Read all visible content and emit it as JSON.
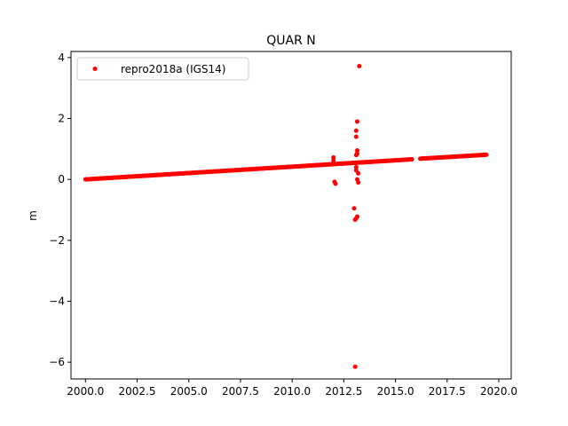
{
  "chart_data": {
    "type": "scatter",
    "title": "QUAR N",
    "xlabel": "",
    "ylabel": "m",
    "xlim": [
      1999.3,
      2020.6
    ],
    "ylim": [
      -6.55,
      4.2
    ],
    "xticks": [
      2000.0,
      2002.5,
      2005.0,
      2007.5,
      2010.0,
      2012.5,
      2015.0,
      2017.5,
      2020.0
    ],
    "xtick_labels": [
      "2000.0",
      "2002.5",
      "2005.0",
      "2007.5",
      "2010.0",
      "2012.5",
      "2015.0",
      "2017.5",
      "2020.0"
    ],
    "yticks": [
      -6,
      -4,
      -2,
      0,
      2,
      4
    ],
    "ytick_labels": [
      "−6",
      "−4",
      "−2",
      "0",
      "2",
      "4"
    ],
    "grid": false,
    "legend_position": "top-left",
    "series": [
      {
        "name": "repro2018a (IGS14)",
        "color": "#ff0000",
        "marker": "dot",
        "segments": [
          {
            "x_start": 2000.0,
            "x_end": 2015.8,
            "y_start": 0.0,
            "y_end": 0.66
          },
          {
            "x_start": 2016.2,
            "x_end": 2019.4,
            "y_start": 0.68,
            "y_end": 0.81
          }
        ],
        "outliers": [
          {
            "x": 2012.0,
            "y": 0.72
          },
          {
            "x": 2012.0,
            "y": 0.62
          },
          {
            "x": 2012.05,
            "y": -0.08
          },
          {
            "x": 2012.1,
            "y": -0.14
          },
          {
            "x": 2013.0,
            "y": -0.95
          },
          {
            "x": 2013.05,
            "y": -1.32
          },
          {
            "x": 2013.1,
            "y": -1.28
          },
          {
            "x": 2013.15,
            "y": -1.22
          },
          {
            "x": 2013.1,
            "y": 0.3
          },
          {
            "x": 2013.1,
            "y": 0.4
          },
          {
            "x": 2013.1,
            "y": 0.8
          },
          {
            "x": 2013.15,
            "y": 0.85
          },
          {
            "x": 2013.1,
            "y": 1.4
          },
          {
            "x": 2013.1,
            "y": 1.6
          },
          {
            "x": 2013.15,
            "y": 1.9
          },
          {
            "x": 2013.15,
            "y": 0.95
          },
          {
            "x": 2013.2,
            "y": 0.2
          },
          {
            "x": 2013.15,
            "y": 0.0
          },
          {
            "x": 2013.2,
            "y": -0.1
          },
          {
            "x": 2013.25,
            "y": 3.72
          },
          {
            "x": 2013.05,
            "y": -6.15
          }
        ]
      }
    ]
  }
}
